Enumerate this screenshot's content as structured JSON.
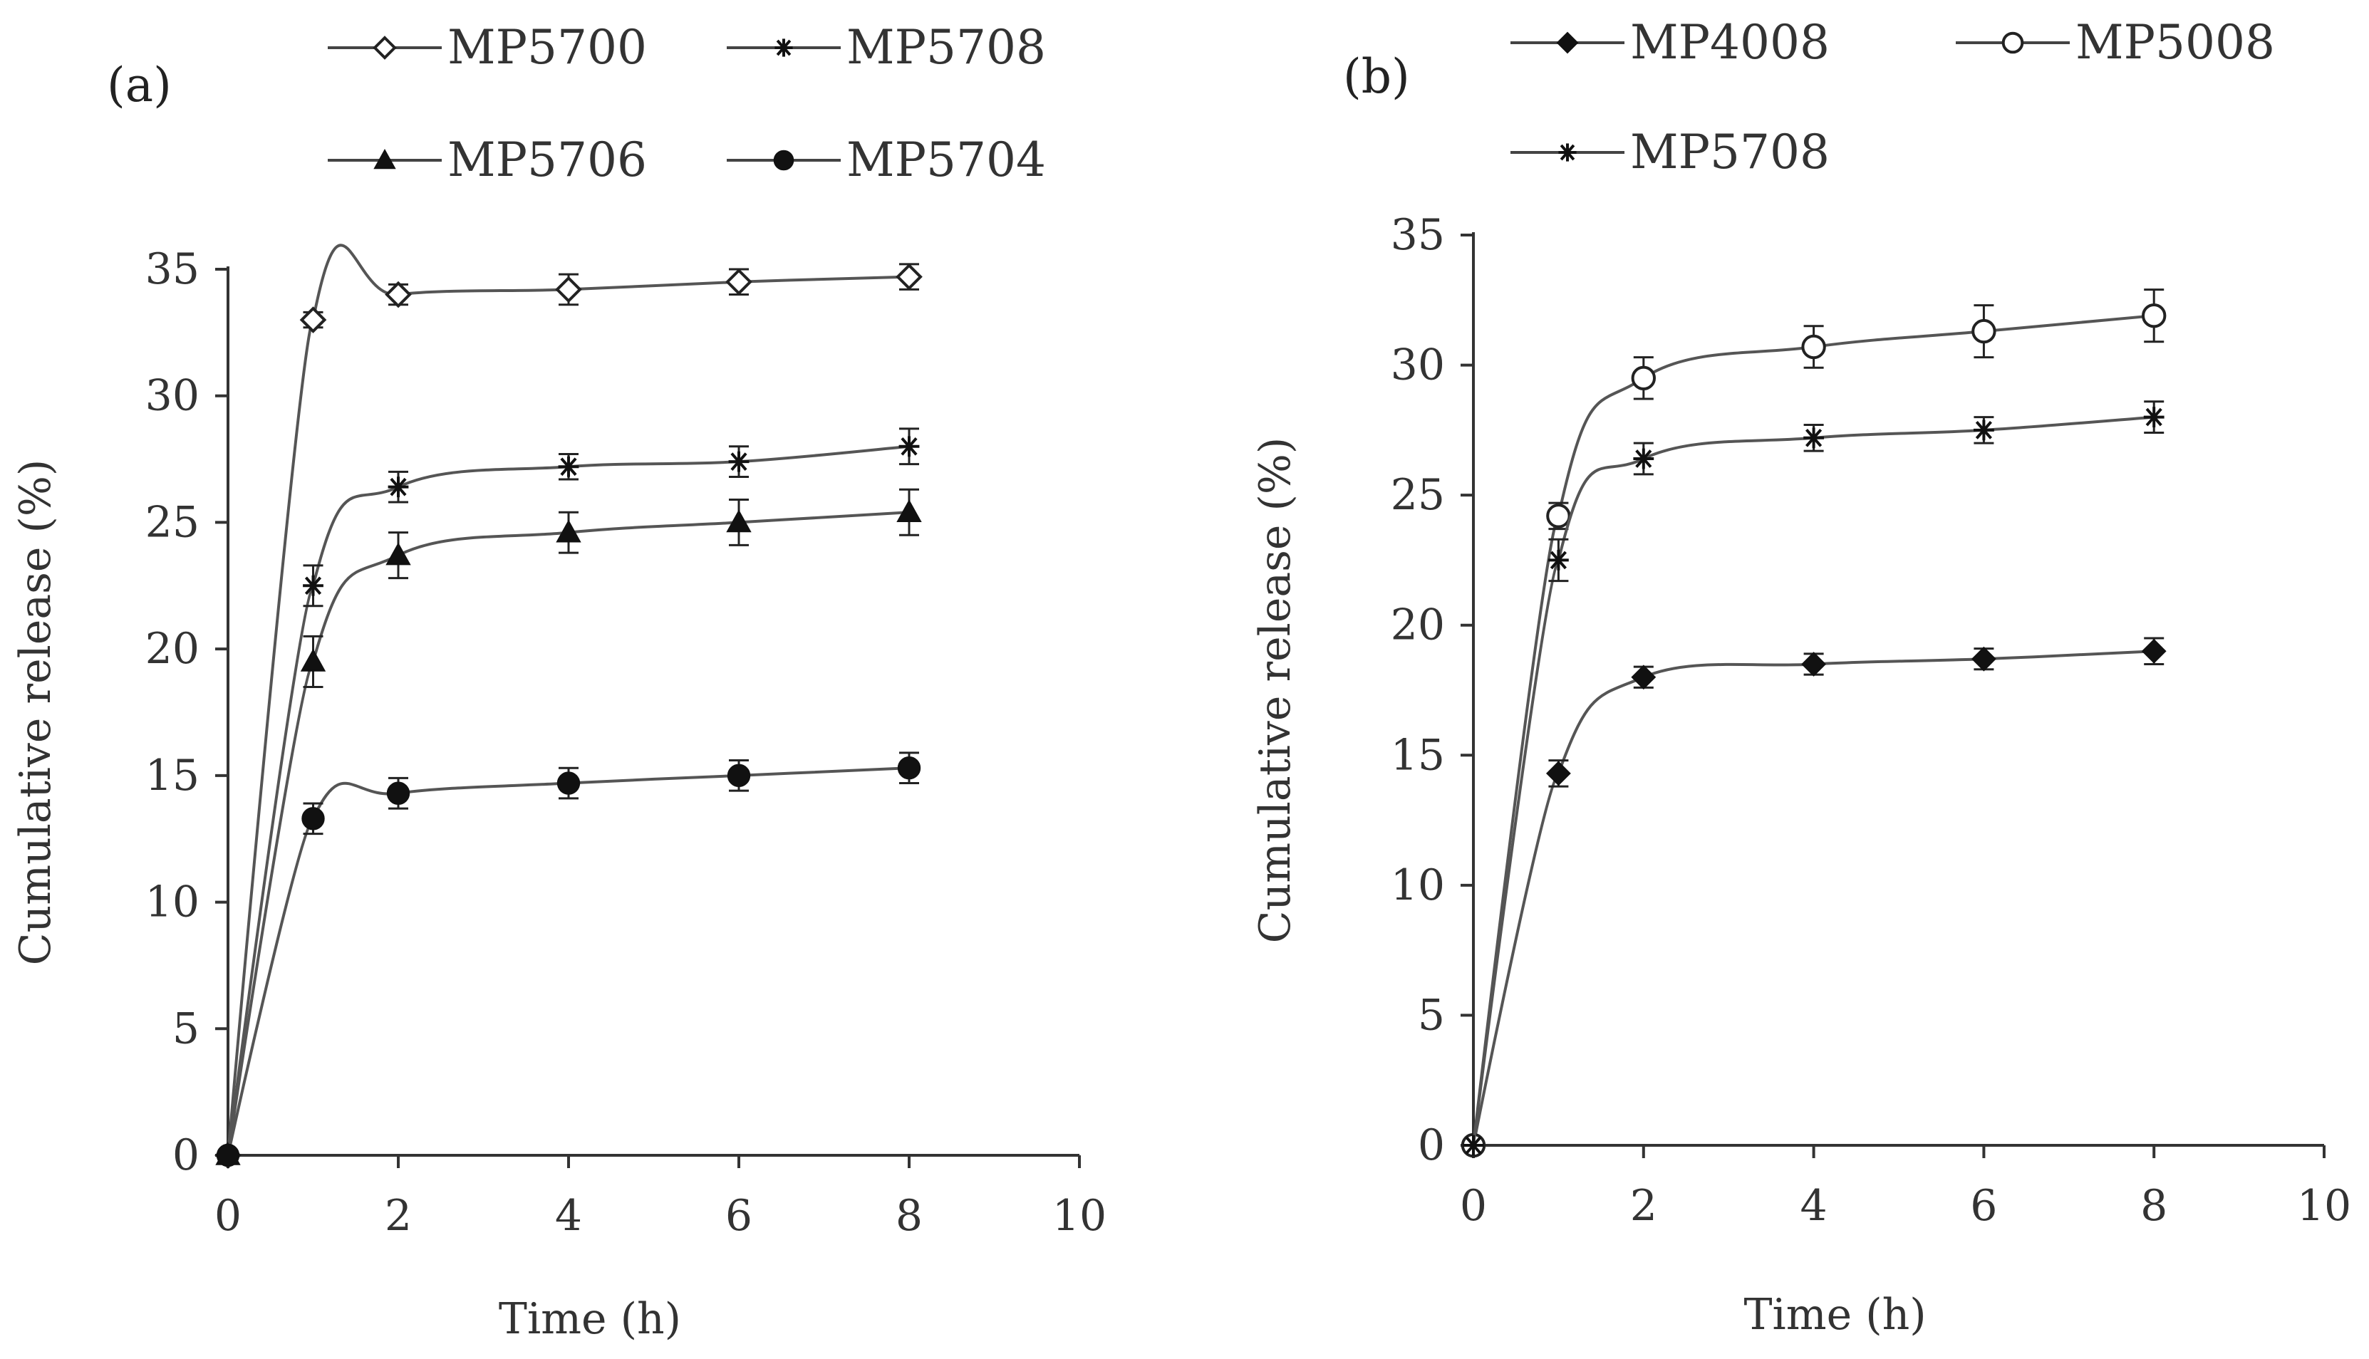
{
  "chart_data": [
    {
      "panel": "(a)",
      "type": "line",
      "xlabel": "Time (h)",
      "ylabel": "Cumulative release (%)",
      "xlim": [
        0,
        10
      ],
      "ylim": [
        0,
        35
      ],
      "xticks": [
        0,
        2,
        4,
        6,
        8,
        10
      ],
      "yticks": [
        0,
        5,
        10,
        15,
        20,
        25,
        30,
        35
      ],
      "grid": false,
      "legend_position": "top",
      "x": [
        0,
        1,
        2,
        4,
        6,
        8
      ],
      "series": [
        {
          "name": "MP5700",
          "marker": "open-diamond",
          "values": [
            0,
            33.0,
            34.0,
            34.2,
            34.5,
            34.7
          ],
          "errors": [
            0,
            0.3,
            0.4,
            0.6,
            0.5,
            0.5
          ]
        },
        {
          "name": "MP5708",
          "marker": "star",
          "values": [
            0,
            22.5,
            26.4,
            27.2,
            27.4,
            28.0
          ],
          "errors": [
            0,
            0.8,
            0.6,
            0.5,
            0.6,
            0.7
          ]
        },
        {
          "name": "MP5706",
          "marker": "filled-triangle",
          "values": [
            0,
            19.5,
            23.7,
            24.6,
            25.0,
            25.4
          ],
          "errors": [
            0,
            1.0,
            0.9,
            0.8,
            0.9,
            0.9
          ]
        },
        {
          "name": "MP5704",
          "marker": "filled-circle",
          "values": [
            0,
            13.3,
            14.3,
            14.7,
            15.0,
            15.3
          ],
          "errors": [
            0,
            0.6,
            0.6,
            0.6,
            0.6,
            0.6
          ]
        }
      ]
    },
    {
      "panel": "(b)",
      "type": "line",
      "xlabel": "Time (h)",
      "ylabel": "Cumulative release (%)",
      "xlim": [
        0,
        10
      ],
      "ylim": [
        0,
        35
      ],
      "xticks": [
        0,
        2,
        4,
        6,
        8,
        10
      ],
      "yticks": [
        0,
        5,
        10,
        15,
        20,
        25,
        30,
        35
      ],
      "grid": false,
      "legend_position": "top",
      "x": [
        0,
        1,
        2,
        4,
        6,
        8
      ],
      "series": [
        {
          "name": "MP4008",
          "marker": "filled-diamond",
          "values": [
            0,
            14.3,
            18.0,
            18.5,
            18.7,
            19.0
          ],
          "errors": [
            0,
            0.5,
            0.4,
            0.4,
            0.4,
            0.5
          ]
        },
        {
          "name": "MP5008",
          "marker": "open-circle",
          "values": [
            0,
            24.2,
            29.5,
            30.7,
            31.3,
            31.9
          ],
          "errors": [
            0,
            0.5,
            0.8,
            0.8,
            1.0,
            1.0
          ]
        },
        {
          "name": "MP5708",
          "marker": "star",
          "values": [
            0,
            22.5,
            26.4,
            27.2,
            27.5,
            28.0
          ],
          "errors": [
            0,
            0.8,
            0.6,
            0.5,
            0.5,
            0.6
          ]
        }
      ]
    }
  ]
}
